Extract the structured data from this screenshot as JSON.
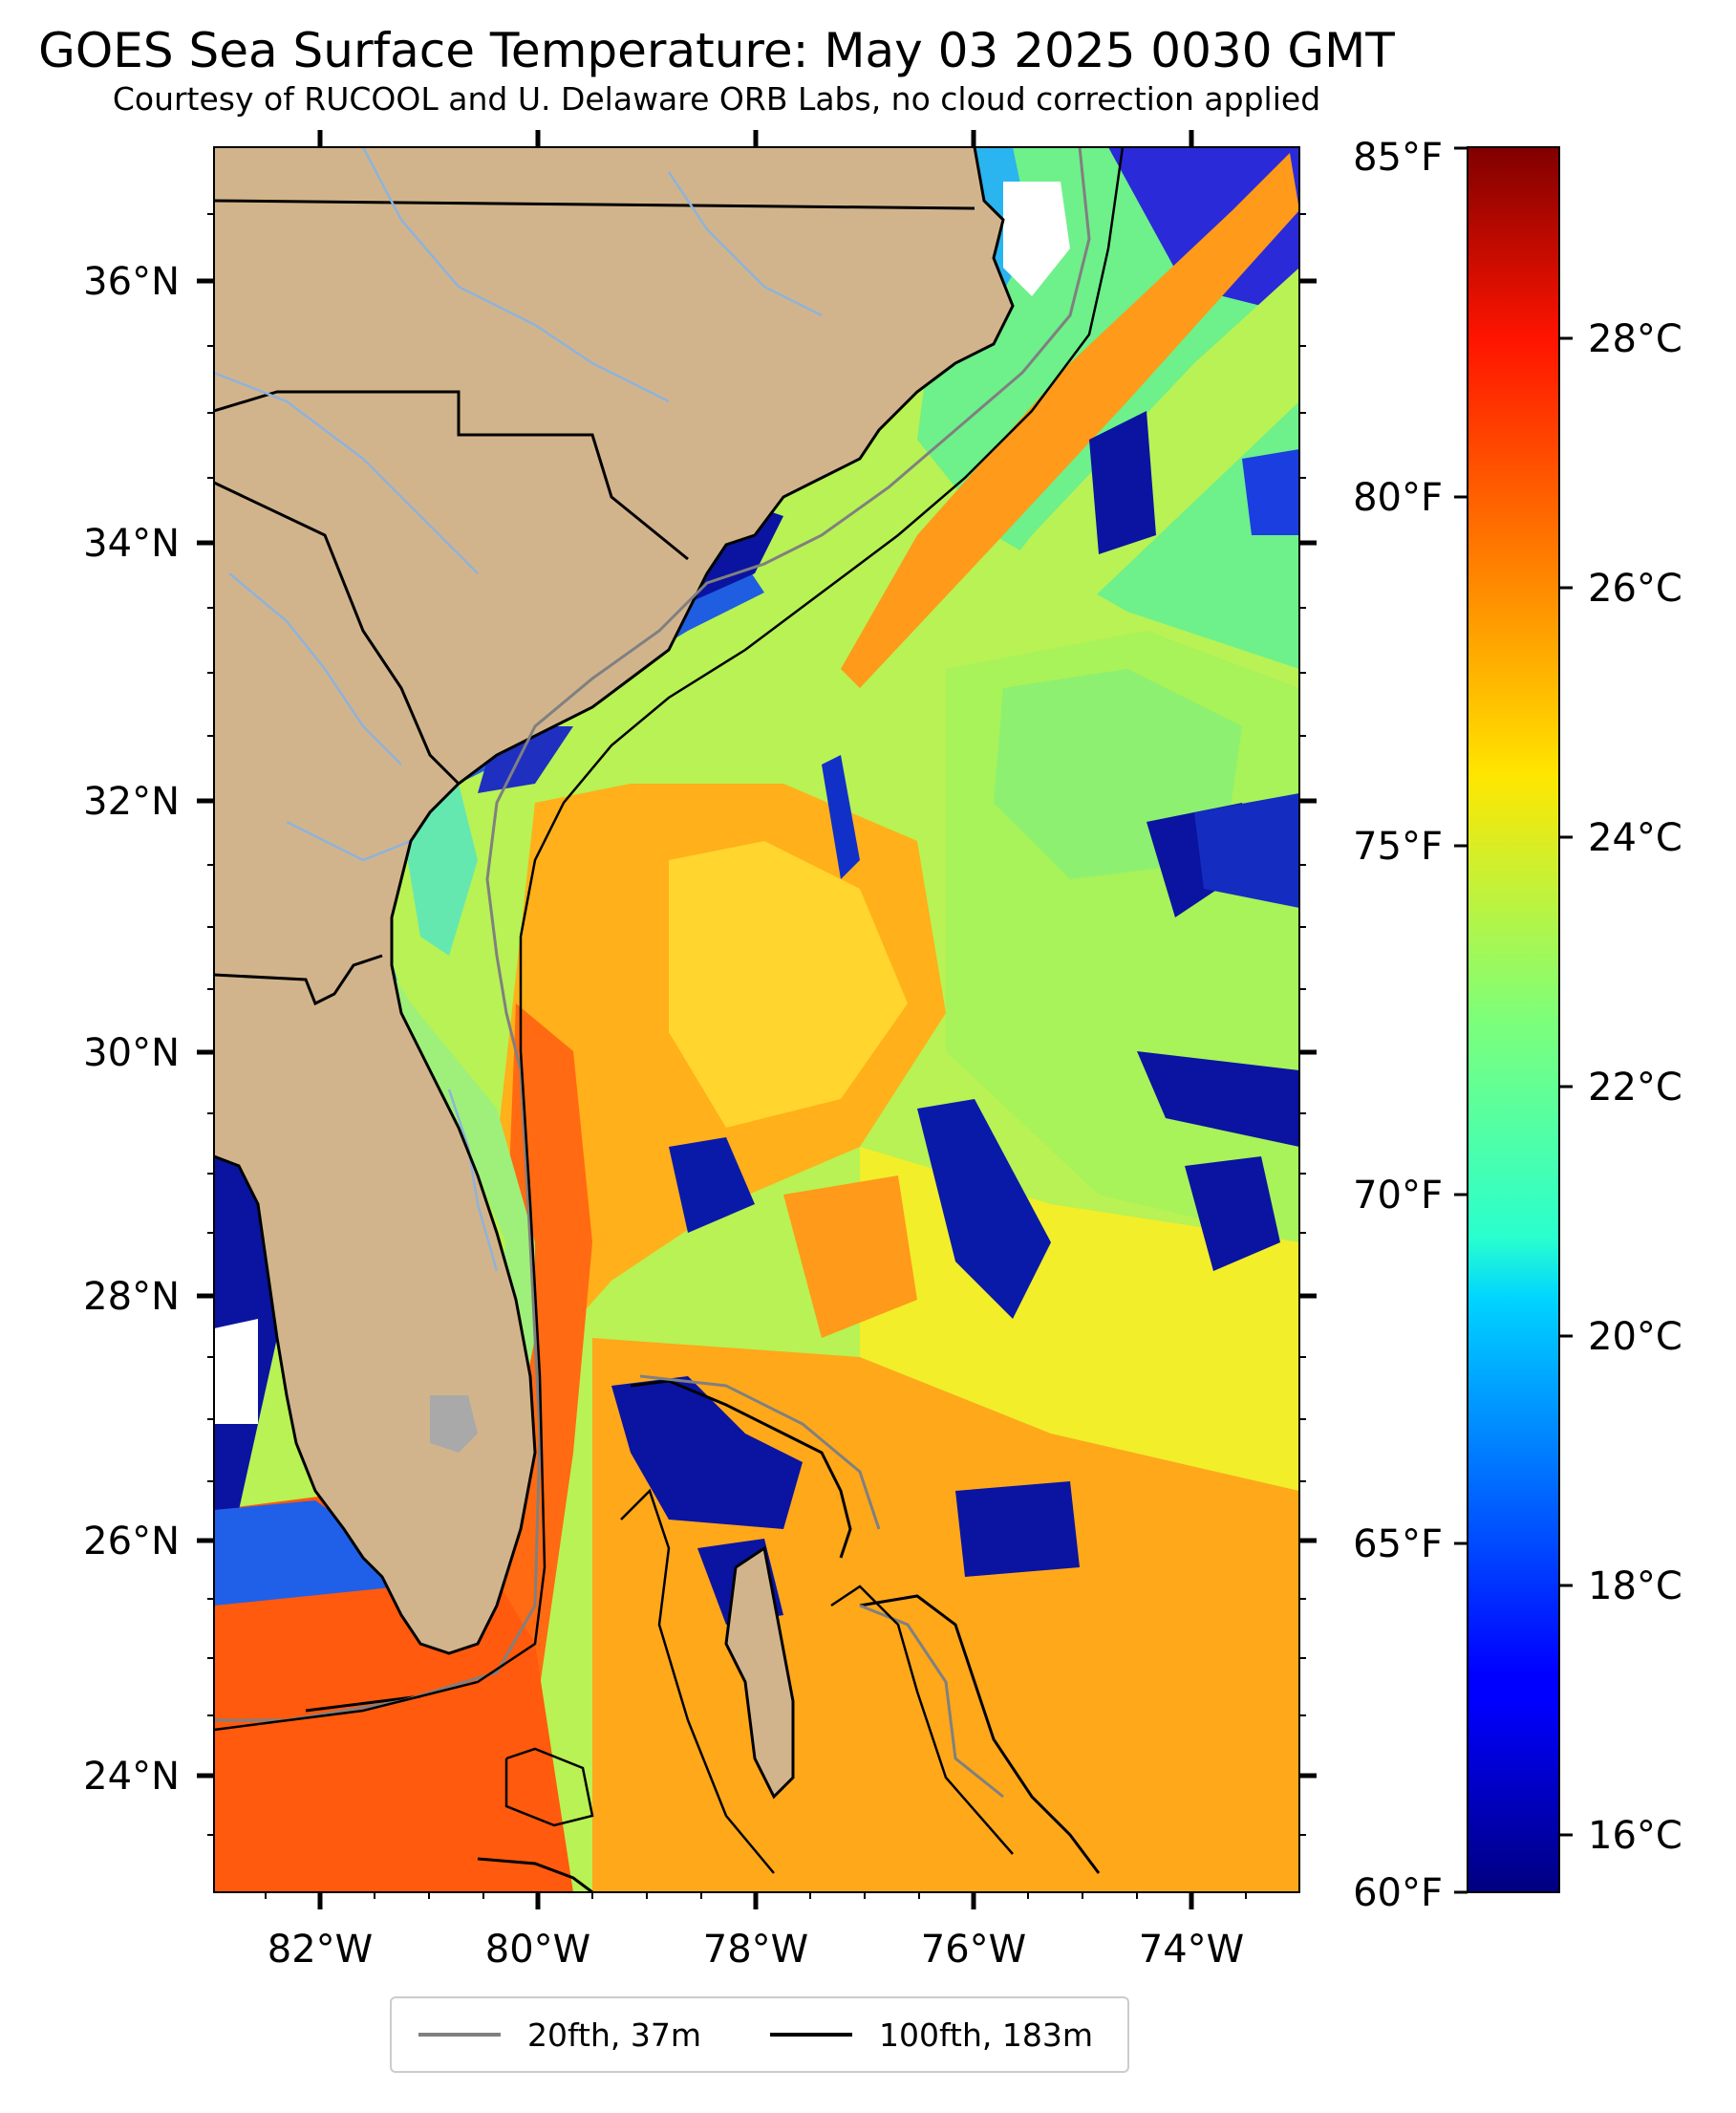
{
  "title": "GOES Sea Surface Temperature: May 03 2025 0030 GMT",
  "subtitle": "Courtesy of RUCOOL and U. Delaware ORB Labs, no cloud correction applied",
  "map": {
    "lon_labels": [
      "82°W",
      "80°W",
      "78°W",
      "76°W",
      "74°W"
    ],
    "lat_labels": [
      "24°N",
      "26°N",
      "28°N",
      "30°N",
      "32°N",
      "34°N",
      "36°N"
    ],
    "colors": {
      "land": "#d2b48c",
      "coast": "#000000",
      "rivers": "#8fb3d9",
      "isobath_20fth": "#808080",
      "isobath_100fth": "#000000"
    }
  },
  "colorbar": {
    "celsius_labels": [
      "16°C",
      "18°C",
      "20°C",
      "22°C",
      "24°C",
      "26°C",
      "28°C"
    ],
    "fahrenheit_labels": [
      "60°F",
      "65°F",
      "70°F",
      "75°F",
      "80°F",
      "85°F"
    ],
    "colormap": "jet"
  },
  "legend": {
    "items": [
      {
        "label": "20fth, 37m",
        "color": "#808080"
      },
      {
        "label": "100fth, 183m",
        "color": "#000000"
      }
    ]
  }
}
